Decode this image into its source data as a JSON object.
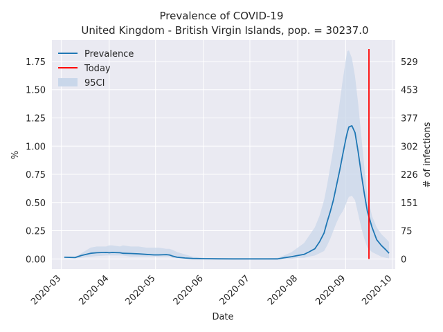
{
  "chart_data": {
    "type": "line",
    "title": "Prevalence of COVID-19",
    "subtitle": "United Kingdom - British Virgin Islands, pop. = 30237.0",
    "xlabel": "Date",
    "ylabel": "%",
    "ylabel_right": "# of infections",
    "xlim": [
      "2020-02-24",
      "2020-10-03"
    ],
    "ylim": [
      -0.09,
      1.94
    ],
    "y_ticks": [
      "0.00",
      "0.25",
      "0.50",
      "0.75",
      "1.00",
      "1.25",
      "1.50",
      "1.75"
    ],
    "y_right_ticks": [
      "0",
      "75",
      "151",
      "226",
      "302",
      "377",
      "453",
      "529"
    ],
    "x_ticks": [
      "2020-03",
      "2020-04",
      "2020-05",
      "2020-06",
      "2020-07",
      "2020-08",
      "2020-09",
      "2020-10"
    ],
    "grid": true,
    "legend_position": "top-left",
    "legend": [
      "Prevalence",
      "Today",
      "95CI"
    ],
    "colors": {
      "background": "#eaeaf2",
      "grid": "#ffffff",
      "prevalence": "#1f77b4",
      "today": "#ff0000",
      "ci_fill": "#c9d7ea"
    },
    "today": "2020-09-16",
    "series": [
      {
        "name": "Prevalence",
        "x": [
          "2020-03-03",
          "2020-03-10",
          "2020-03-14",
          "2020-03-20",
          "2020-03-24",
          "2020-03-30",
          "2020-04-01",
          "2020-04-03",
          "2020-04-08",
          "2020-04-10",
          "2020-04-15",
          "2020-04-20",
          "2020-04-25",
          "2020-04-30",
          "2020-05-03",
          "2020-05-08",
          "2020-05-10",
          "2020-05-12",
          "2020-05-15",
          "2020-05-20",
          "2020-05-25",
          "2020-06-01",
          "2020-06-10",
          "2020-06-20",
          "2020-07-01",
          "2020-07-10",
          "2020-07-19",
          "2020-07-23",
          "2020-07-28",
          "2020-08-01",
          "2020-08-05",
          "2020-08-08",
          "2020-08-12",
          "2020-08-15",
          "2020-08-18",
          "2020-08-20",
          "2020-08-22",
          "2020-08-24",
          "2020-08-26",
          "2020-08-28",
          "2020-08-30",
          "2020-09-01",
          "2020-09-02",
          "2020-09-03",
          "2020-09-05",
          "2020-09-07",
          "2020-09-09",
          "2020-09-11",
          "2020-09-13",
          "2020-09-15",
          "2020-09-18",
          "2020-09-21",
          "2020-09-24",
          "2020-09-27",
          "2020-09-29"
        ],
        "values": [
          0.015,
          0.012,
          0.03,
          0.05,
          0.055,
          0.058,
          0.055,
          0.057,
          0.055,
          0.05,
          0.048,
          0.045,
          0.04,
          0.036,
          0.036,
          0.038,
          0.035,
          0.025,
          0.015,
          0.008,
          0.004,
          0.002,
          0.001,
          0.0,
          0.0,
          0.0,
          0.0,
          0.01,
          0.02,
          0.03,
          0.04,
          0.06,
          0.09,
          0.15,
          0.23,
          0.33,
          0.42,
          0.52,
          0.65,
          0.78,
          0.92,
          1.06,
          1.12,
          1.17,
          1.18,
          1.12,
          0.95,
          0.76,
          0.58,
          0.42,
          0.28,
          0.17,
          0.12,
          0.08,
          0.05
        ]
      },
      {
        "name": "95CI",
        "x": [
          "2020-03-03",
          "2020-03-10",
          "2020-03-14",
          "2020-03-20",
          "2020-03-24",
          "2020-03-30",
          "2020-04-01",
          "2020-04-03",
          "2020-04-08",
          "2020-04-10",
          "2020-04-15",
          "2020-04-20",
          "2020-04-25",
          "2020-04-30",
          "2020-05-03",
          "2020-05-08",
          "2020-05-10",
          "2020-05-12",
          "2020-05-15",
          "2020-05-20",
          "2020-05-25",
          "2020-06-01",
          "2020-06-10",
          "2020-06-20",
          "2020-07-01",
          "2020-07-10",
          "2020-07-19",
          "2020-07-23",
          "2020-07-28",
          "2020-08-01",
          "2020-08-05",
          "2020-08-08",
          "2020-08-12",
          "2020-08-15",
          "2020-08-18",
          "2020-08-20",
          "2020-08-22",
          "2020-08-24",
          "2020-08-26",
          "2020-08-28",
          "2020-08-30",
          "2020-09-01",
          "2020-09-02",
          "2020-09-03",
          "2020-09-05",
          "2020-09-07",
          "2020-09-09",
          "2020-09-11",
          "2020-09-13",
          "2020-09-15",
          "2020-09-18",
          "2020-09-21",
          "2020-09-24",
          "2020-09-27",
          "2020-09-29"
        ],
        "upper": [
          0.02,
          0.02,
          0.05,
          0.1,
          0.11,
          0.11,
          0.12,
          0.12,
          0.11,
          0.12,
          0.11,
          0.11,
          0.1,
          0.1,
          0.1,
          0.09,
          0.09,
          0.08,
          0.06,
          0.04,
          0.02,
          0.01,
          0.005,
          0.003,
          0.003,
          0.003,
          0.01,
          0.03,
          0.06,
          0.1,
          0.14,
          0.2,
          0.28,
          0.38,
          0.52,
          0.66,
          0.82,
          0.98,
          1.18,
          1.38,
          1.58,
          1.76,
          1.84,
          1.85,
          1.78,
          1.62,
          1.38,
          1.1,
          0.82,
          0.56,
          0.38,
          0.28,
          0.22,
          0.18,
          0.15
        ],
        "lower": [
          0.005,
          0.005,
          0.01,
          0.02,
          0.025,
          0.03,
          0.03,
          0.03,
          0.03,
          0.03,
          0.02,
          0.02,
          0.02,
          0.02,
          0.02,
          0.02,
          0.02,
          0.01,
          0.005,
          0.003,
          0.001,
          0.0,
          0.0,
          0.0,
          0.0,
          0.0,
          0.0,
          0.0,
          0.0,
          0.01,
          0.01,
          0.02,
          0.03,
          0.05,
          0.07,
          0.12,
          0.18,
          0.25,
          0.32,
          0.38,
          0.42,
          0.48,
          0.52,
          0.55,
          0.56,
          0.52,
          0.4,
          0.28,
          0.18,
          0.1,
          0.06,
          0.04,
          0.02,
          0.01,
          0.005
        ]
      }
    ]
  }
}
